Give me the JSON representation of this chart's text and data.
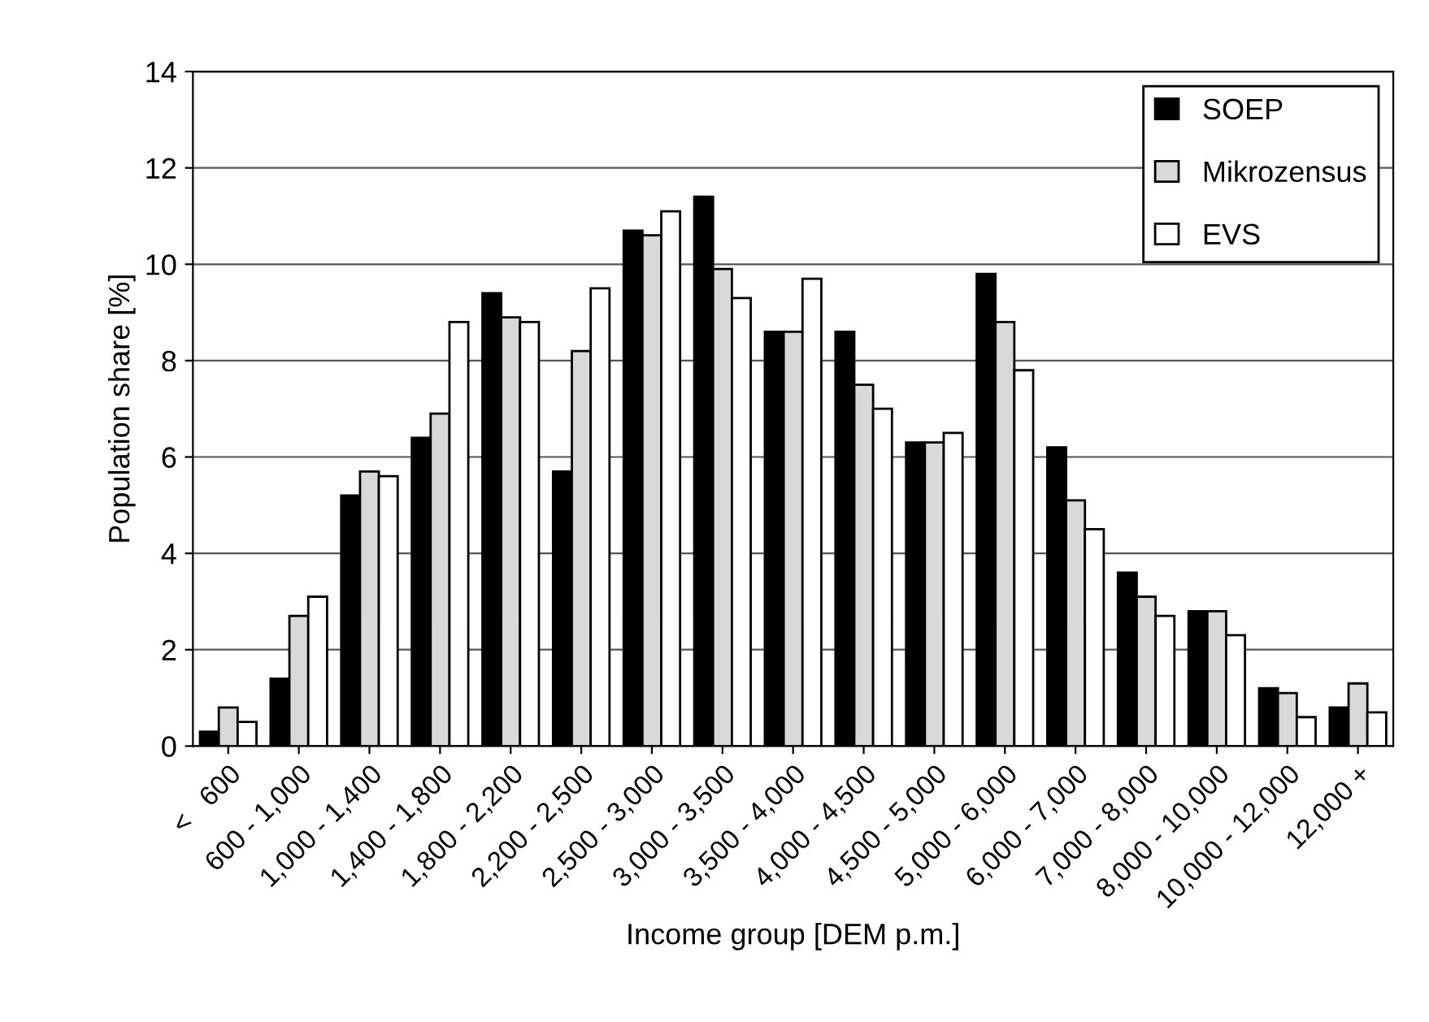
{
  "chart_data": {
    "type": "bar",
    "xlabel": "Income group [DEM p.m.]",
    "ylabel": "Population share [%]",
    "categories": [
      "<   600",
      "600 - 1,000",
      "1,000 - 1,400",
      "1,400 - 1,800",
      "1,800 - 2,200",
      "2,200 - 2,500",
      "2,500 - 3,000",
      "3,000 - 3,500",
      "3,500 - 4,000",
      "4,000 - 4,500",
      "4,500 - 5,000",
      "5,000 - 6,000",
      "6,000 - 7,000",
      "7,000 - 8,000",
      "8,000 - 10,000",
      "10,000 - 12,000",
      "12,000 +"
    ],
    "series": [
      {
        "name": "SOEP",
        "color": "#000000",
        "values": [
          0.3,
          1.4,
          5.2,
          6.4,
          9.4,
          5.7,
          10.7,
          11.4,
          8.6,
          8.6,
          6.3,
          9.8,
          6.2,
          3.6,
          2.8,
          1.2,
          0.8
        ]
      },
      {
        "name": "Mikrozensus",
        "color": "#d9d9d9",
        "values": [
          0.8,
          2.7,
          5.7,
          6.9,
          8.9,
          8.2,
          10.6,
          9.9,
          8.6,
          7.5,
          6.3,
          8.8,
          5.1,
          3.1,
          2.8,
          1.1,
          1.3
        ]
      },
      {
        "name": "EVS",
        "color": "#ffffff",
        "values": [
          0.5,
          3.1,
          5.6,
          8.8,
          8.8,
          9.5,
          11.1,
          9.3,
          9.7,
          7.0,
          6.5,
          7.8,
          4.5,
          2.7,
          2.3,
          0.6,
          0.7
        ]
      }
    ],
    "ylim": [
      0,
      14
    ],
    "yticks": [
      0,
      2,
      4,
      6,
      8,
      10,
      12,
      14
    ],
    "grid": "y",
    "legend": "top right"
  }
}
